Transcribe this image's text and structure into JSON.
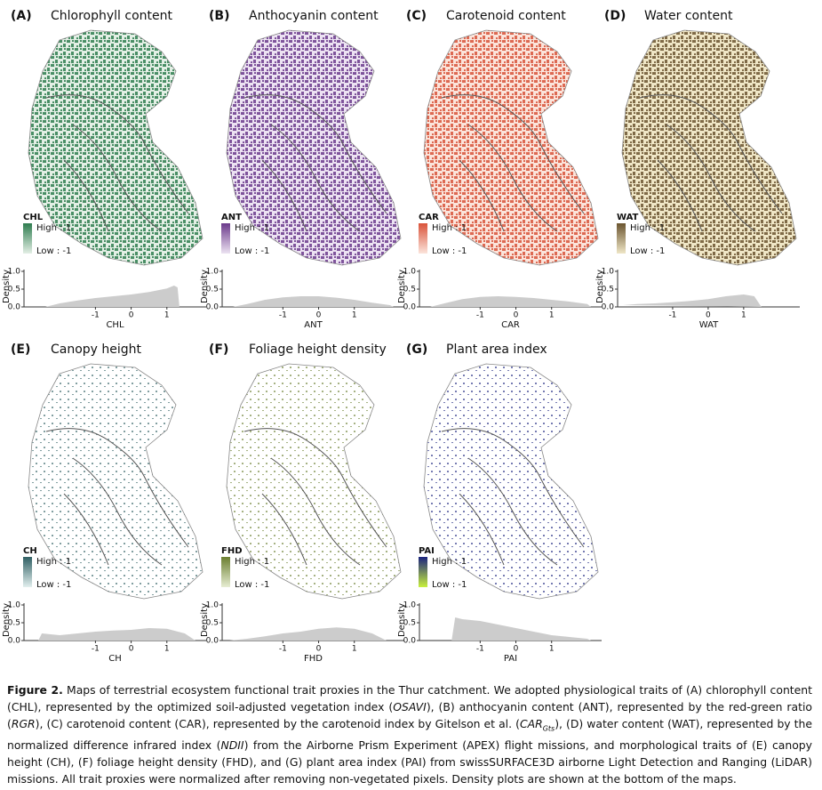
{
  "chart_data": [
    {
      "type": "area",
      "panel": "(A)",
      "title": "Chlorophyll content",
      "legend_title": "CHL",
      "legend_high": "High : 1",
      "legend_low": "Low : -1",
      "colors": [
        "#2e7d4f",
        "#e3efe5"
      ],
      "fill": "#cccccc",
      "xlabel": "CHL",
      "ylabel": "Density",
      "x": [
        -2.4,
        -2,
        -1.5,
        -1,
        -0.5,
        0,
        0.5,
        1,
        1.2,
        1.3,
        1.35
      ],
      "values": [
        0,
        0.1,
        0.18,
        0.25,
        0.3,
        0.35,
        0.42,
        0.52,
        0.6,
        0.55,
        0
      ],
      "xlim": [
        -3,
        2.1
      ],
      "xticks": [
        -1,
        0,
        1
      ],
      "ylim": [
        0,
        1.05
      ],
      "yticks": [
        {
          "value": 0,
          "label": "0.0"
        },
        {
          "value": 0.5,
          "label": "0.5"
        },
        {
          "value": 1,
          "label": "1.0"
        }
      ]
    },
    {
      "type": "area",
      "panel": "(B)",
      "title": "Anthocyanin content",
      "legend_title": "ANT",
      "legend_high": "High : 1",
      "legend_low": "Low : -1",
      "colors": [
        "#6b3a8c",
        "#ece2f2"
      ],
      "fill": "#cccccc",
      "xlabel": "ANT",
      "ylabel": "Density",
      "x": [
        -2.4,
        -2,
        -1.5,
        -1,
        -0.5,
        0,
        0.5,
        1,
        1.5,
        2,
        2.1
      ],
      "values": [
        0,
        0.08,
        0.2,
        0.27,
        0.3,
        0.3,
        0.26,
        0.2,
        0.12,
        0.05,
        0
      ],
      "xlim": [
        -2.7,
        2.4
      ],
      "xticks": [
        -1,
        0,
        1
      ],
      "ylim": [
        0,
        1.05
      ],
      "yticks": [
        {
          "value": 0,
          "label": "0.0"
        },
        {
          "value": 0.5,
          "label": "0.5"
        },
        {
          "value": 1,
          "label": "1.0"
        }
      ]
    },
    {
      "type": "area",
      "panel": "(C)",
      "title": "Carotenoid content",
      "legend_title": "CAR",
      "legend_high": "High : 1",
      "legend_low": "Low : -1",
      "colors": [
        "#d9533a",
        "#fbe4db"
      ],
      "fill": "#cccccc",
      "xlabel": "CAR",
      "ylabel": "Density",
      "x": [
        -2.4,
        -2,
        -1.5,
        -1,
        -0.5,
        0,
        0.5,
        1,
        1.5,
        2,
        2.1
      ],
      "values": [
        0,
        0.1,
        0.22,
        0.28,
        0.3,
        0.28,
        0.25,
        0.2,
        0.15,
        0.08,
        0
      ],
      "xlim": [
        -2.7,
        2.4
      ],
      "xticks": [
        -1,
        0,
        1
      ],
      "ylim": [
        0,
        1.05
      ],
      "yticks": [
        {
          "value": 0,
          "label": "0.0"
        },
        {
          "value": 0.5,
          "label": "0.5"
        },
        {
          "value": 1,
          "label": "1.0"
        }
      ]
    },
    {
      "type": "area",
      "panel": "(D)",
      "title": "Water content",
      "legend_title": "WAT",
      "legend_high": "High : 1",
      "legend_low": "Low : -1",
      "colors": [
        "#6b5530",
        "#efe6c6"
      ],
      "fill": "#cccccc",
      "xlabel": "WAT",
      "ylabel": "Density",
      "x": [
        -2.4,
        -2,
        -1.5,
        -1,
        -0.5,
        0,
        0.5,
        1,
        1.3,
        1.5
      ],
      "values": [
        0.05,
        0.08,
        0.1,
        0.13,
        0.17,
        0.22,
        0.3,
        0.35,
        0.3,
        0
      ],
      "xlim": [
        -2.55,
        2.58
      ],
      "xticks": [
        -1,
        0,
        1
      ],
      "ylim": [
        0,
        1.05
      ],
      "yticks": [
        {
          "value": 0,
          "label": "0.0"
        },
        {
          "value": 0.5,
          "label": "0.5"
        },
        {
          "value": 1,
          "label": "1.0"
        }
      ]
    },
    {
      "type": "area",
      "panel": "(E)",
      "title": "Canopy height",
      "legend_title": "CH",
      "legend_high": "High : 1",
      "legend_low": "Low : -1",
      "colors": [
        "#2f5f63",
        "#e2efee"
      ],
      "fill": "#cccccc",
      "xlabel": "CH",
      "ylabel": "Density",
      "x": [
        -2.6,
        -2.5,
        -2,
        -1.5,
        -1,
        -0.5,
        0,
        0.5,
        1,
        1.5,
        1.8
      ],
      "values": [
        0,
        0.2,
        0.15,
        0.2,
        0.25,
        0.28,
        0.3,
        0.35,
        0.33,
        0.2,
        0
      ],
      "xlim": [
        -3,
        2.1
      ],
      "xticks": [
        -1,
        0,
        1
      ],
      "ylim": [
        0,
        1.05
      ],
      "yticks": [
        {
          "value": 0,
          "label": "0.0"
        },
        {
          "value": 0.5,
          "label": "0.5"
        },
        {
          "value": 1,
          "label": "1.0"
        }
      ]
    },
    {
      "type": "area",
      "panel": "(F)",
      "title": "Foliage height density",
      "legend_title": "FHD",
      "legend_high": "High : 1",
      "legend_low": "Low : -1",
      "colors": [
        "#6b7f30",
        "#e7edd2"
      ],
      "fill": "#cccccc",
      "xlabel": "FHD",
      "ylabel": "Density",
      "x": [
        -2.5,
        -2,
        -1.5,
        -1,
        -0.5,
        0,
        0.5,
        1,
        1.5,
        1.9
      ],
      "values": [
        0,
        0.05,
        0.12,
        0.2,
        0.25,
        0.33,
        0.37,
        0.33,
        0.2,
        0
      ],
      "xlim": [
        -2.7,
        2.4
      ],
      "xticks": [
        -1,
        0,
        1
      ],
      "ylim": [
        0,
        1.05
      ],
      "yticks": [
        {
          "value": 0,
          "label": "0.0"
        },
        {
          "value": 0.5,
          "label": "0.5"
        },
        {
          "value": 1,
          "label": "1.0"
        }
      ]
    },
    {
      "type": "area",
      "panel": "(G)",
      "title": "Plant area index",
      "legend_title": "PAI",
      "legend_high": "High : 1",
      "legend_low": "Low : -1",
      "colors": [
        "#1a237e",
        "#c8f03c"
      ],
      "fill": "#cccccc",
      "xlabel": "PAI",
      "ylabel": "Density",
      "x": [
        -1.8,
        -1.7,
        -1.5,
        -1,
        -0.5,
        0,
        0.5,
        1,
        1.5,
        2,
        2.1
      ],
      "values": [
        0,
        0.65,
        0.6,
        0.55,
        0.45,
        0.35,
        0.25,
        0.15,
        0.1,
        0.05,
        0
      ],
      "xlim": [
        -2.7,
        2.4
      ],
      "xticks": [
        -1,
        0,
        1
      ],
      "ylim": [
        0,
        1.05
      ],
      "yticks": [
        {
          "value": 0,
          "label": "0.0"
        },
        {
          "value": 0.5,
          "label": "0.5"
        },
        {
          "value": 1,
          "label": "1.0"
        }
      ]
    }
  ],
  "caption": {
    "runs": [
      "Figure 2.",
      " Maps of terrestrial ecosystem functional trait proxies in the Thur catchment. We adopted physiological traits of (A) chlorophyll content (CHL), represented by the optimized soil-adjusted vegetation index (",
      "OSAVI",
      "), (B) anthocyanin content (ANT), represented by the red-green ratio (",
      "RGR",
      "), (C) carotenoid content (CAR), represented by the carotenoid index by Gitelson et al. (",
      "CAR",
      "Gts",
      "), (D) water content (WAT), represented by the normalized difference infrared index (",
      "NDII",
      ") from the Airborne Prism Experiment (APEX) flight missions, and morphological traits of (E) canopy height (CH), (F) foliage height density (FHD), and (G) plant area index (PAI) from swissSURFACE3D airborne Light Detection and Ranging (LiDAR) missions. All trait proxies were normalized after removing non-vegetated pixels. Density plots are shown at the bottom of the maps."
    ]
  }
}
